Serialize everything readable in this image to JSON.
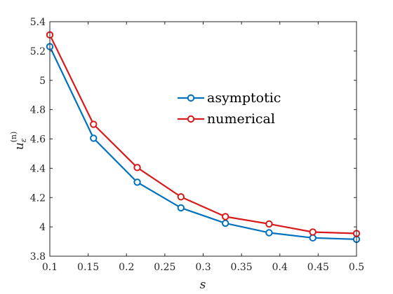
{
  "chart_data": {
    "type": "line",
    "title": "",
    "xlabel": "s",
    "ylabel": "u",
    "ylabel_sub": "ε",
    "ylabel_sup": "(n)",
    "xlim": [
      0.1,
      0.5
    ],
    "ylim": [
      3.8,
      5.4
    ],
    "x_ticks": [
      0.1,
      0.15,
      0.2,
      0.25,
      0.3,
      0.35,
      0.4,
      0.45,
      0.5
    ],
    "x_tick_labels": [
      "0.1",
      "0.15",
      "0.2",
      "0.25",
      "0.3",
      "0.35",
      "0.4",
      "0.45",
      "0.5"
    ],
    "y_ticks": [
      3.8,
      4.0,
      4.2,
      4.4,
      4.6,
      4.8,
      5.0,
      5.2,
      5.4
    ],
    "y_tick_labels": [
      "3.8",
      "4",
      "4.2",
      "4.4",
      "4.6",
      "4.8",
      "5",
      "5.2",
      "5.4"
    ],
    "grid": false,
    "legend_position": "center-right",
    "x": [
      0.1,
      0.157,
      0.214,
      0.271,
      0.329,
      0.386,
      0.443,
      0.5
    ],
    "series": [
      {
        "name": "asymptotic",
        "color": "#0072BD",
        "marker": "circle",
        "values": [
          5.23,
          4.605,
          4.305,
          4.13,
          4.025,
          3.96,
          3.925,
          3.915
        ]
      },
      {
        "name": "numerical",
        "color": "#D81A1A",
        "marker": "circle",
        "values": [
          5.31,
          4.7,
          4.405,
          4.205,
          4.07,
          4.02,
          3.965,
          3.955
        ]
      }
    ]
  }
}
